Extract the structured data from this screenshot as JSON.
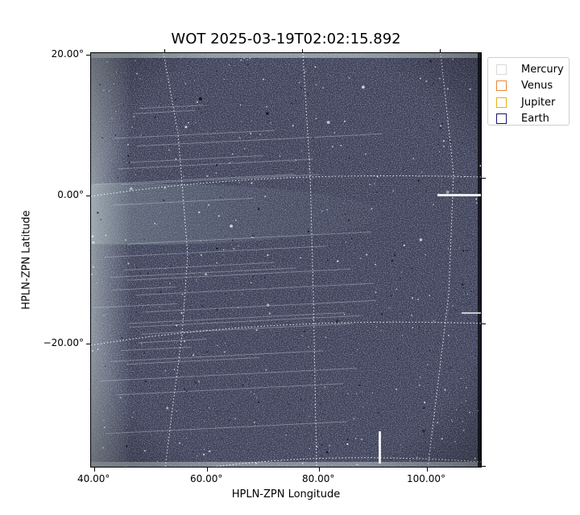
{
  "title": "WOT 2025-03-19T02:02:15.892",
  "axes": {
    "xlabel": "HPLN-ZPN Longitude",
    "ylabel": "HPLN-ZPN Latitude",
    "x_ticks": [
      "40.00°",
      "60.00°",
      "80.00°",
      "100.00°"
    ],
    "y_ticks": [
      "20.00°",
      "0.00°",
      "−20.00°"
    ]
  },
  "legend": {
    "position": "upper-right-outside",
    "items": [
      {
        "label": "Mercury",
        "color": "#d9d9d9"
      },
      {
        "label": "Venus",
        "color": "#e8863a"
      },
      {
        "label": "Jupiter",
        "color": "#e8b020"
      },
      {
        "label": "Earth",
        "color": "#14146e"
      }
    ]
  },
  "image": {
    "description_colors": {
      "background": "#3b3f57",
      "bright_band": "#9aa9ad",
      "grid": "#ffffff"
    }
  }
}
